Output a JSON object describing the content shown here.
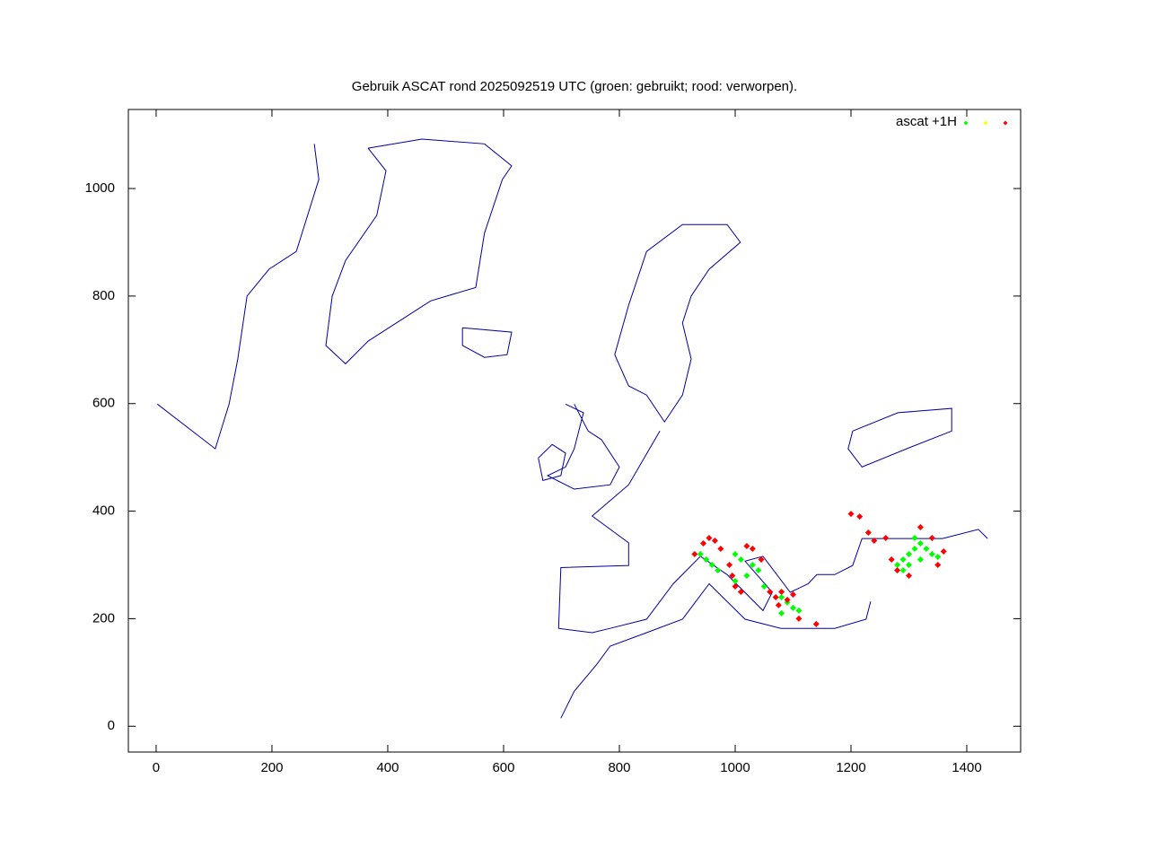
{
  "chart_data": {
    "type": "scatter",
    "title": "Gebruik ASCAT rond 2025092519 UTC (groen: gebruikt; rood: verworpen).",
    "xlim": [
      -48,
      1493
    ],
    "ylim": [
      -48,
      1147
    ],
    "xticks": [
      0,
      200,
      400,
      600,
      800,
      1000,
      1200,
      1400
    ],
    "yticks": [
      0,
      200,
      400,
      600,
      800,
      1000
    ],
    "legend": "top-right",
    "map": {
      "color": "#0000a0",
      "outlines": [
        {
          "x": [
            366,
            397,
            381,
            327,
            304,
            293,
            327,
            366,
            474,
            552,
            567,
            598,
            614,
            567,
            459,
            366
          ],
          "y": [
            1075,
            1033,
            950,
            866,
            800,
            708,
            674,
            716,
            791,
            816,
            917,
            1017,
            1042,
            1083,
            1092,
            1075
          ]
        },
        {
          "x": [
            2,
            102,
            126,
            141,
            157,
            195,
            242,
            281,
            273
          ],
          "y": [
            599,
            516,
            599,
            683,
            800,
            850,
            883,
            1017,
            1083
          ]
        },
        {
          "x": [
            529,
            614,
            606,
            567,
            529,
            529
          ],
          "y": [
            741,
            733,
            691,
            686,
            708,
            741
          ]
        },
        {
          "x": [
            792,
            816,
            847,
            909,
            986,
            1009,
            955,
            924,
            909,
            924,
            909,
            878,
            847,
            816,
            792
          ],
          "y": [
            691,
            783,
            883,
            933,
            933,
            900,
            850,
            800,
            750,
            683,
            616,
            566,
            616,
            633,
            691
          ]
        },
        {
          "x": [
            707,
            738,
            722,
            707,
            676,
            722,
            784,
            800,
            769,
            746,
            722
          ],
          "y": [
            599,
            583,
            516,
            482,
            466,
            441,
            449,
            482,
            533,
            549,
            599
          ]
        },
        {
          "x": [
            660,
            684,
            707,
            699,
            668,
            660
          ],
          "y": [
            499,
            524,
            508,
            466,
            457,
            499
          ]
        },
        {
          "x": [
            870,
            816,
            753,
            816,
            816,
            699,
            695,
            753,
            784,
            847,
            893,
            940,
            986,
            1048,
            1064,
            1017,
            1048,
            1095,
            1126,
            1141,
            1172,
            1203,
            1219,
            1281,
            1358,
            1420,
            1436
          ],
          "y": [
            549,
            449,
            391,
            341,
            299,
            295,
            182,
            174,
            182,
            199,
            265,
            316,
            282,
            215,
            249,
            307,
            316,
            249,
            265,
            282,
            282,
            299,
            349,
            349,
            349,
            366,
            349
          ]
        },
        {
          "x": [
            699,
            722,
            761,
            784,
            847,
            909,
            955,
            1017,
            1079,
            1172,
            1226,
            1234
          ],
          "y": [
            15,
            65,
            115,
            149,
            174,
            199,
            265,
            199,
            182,
            182,
            199,
            232
          ]
        },
        {
          "x": [
            1203,
            1281,
            1374,
            1374,
            1296,
            1219,
            1195,
            1203
          ],
          "y": [
            549,
            583,
            591,
            549,
            516,
            482,
            516,
            549
          ]
        }
      ]
    },
    "series": [
      {
        "name": "ascat +1H",
        "color": "#00ff00",
        "x": [
          940,
          950,
          960,
          970,
          1000,
          1010,
          1030,
          1040,
          1020,
          1000,
          1050,
          1080,
          1090,
          1100,
          1080,
          1110,
          1280,
          1290,
          1300,
          1310,
          1320,
          1330,
          1340,
          1300,
          1320,
          1350,
          1310,
          1290
        ],
        "values": [
          320,
          310,
          300,
          290,
          320,
          310,
          300,
          290,
          280,
          270,
          260,
          240,
          230,
          220,
          210,
          215,
          300,
          310,
          320,
          330,
          340,
          330,
          320,
          300,
          310,
          315,
          350,
          290
        ]
      },
      {
        "color": "#ffff00",
        "x": [],
        "values": []
      },
      {
        "color": "#ff0000",
        "x": [
          930,
          945,
          955,
          965,
          975,
          990,
          995,
          1000,
          1010,
          1020,
          1030,
          1045,
          1060,
          1070,
          1080,
          1090,
          1100,
          1075,
          1110,
          1140,
          1200,
          1215,
          1230,
          1240,
          1260,
          1270,
          1280,
          1300,
          1320,
          1340,
          1360,
          1350
        ],
        "values": [
          320,
          340,
          350,
          345,
          330,
          300,
          280,
          260,
          250,
          335,
          330,
          310,
          250,
          240,
          250,
          235,
          245,
          225,
          200,
          190,
          395,
          390,
          360,
          345,
          350,
          310,
          290,
          280,
          370,
          350,
          325,
          300
        ]
      }
    ]
  }
}
